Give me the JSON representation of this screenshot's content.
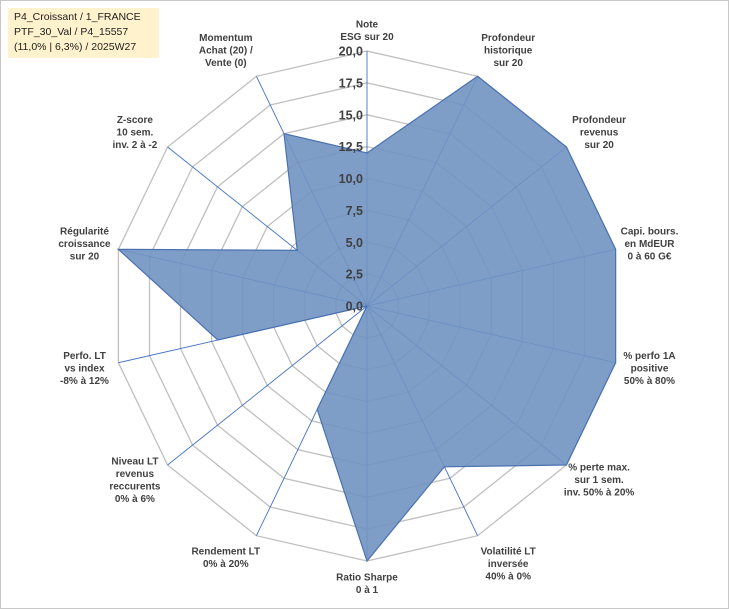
{
  "info_box": {
    "line1": "P4_Croissant / 1_FRANCE",
    "line2": "PTF_30_Val / P4_15557",
    "line3": "(11,0% | 6,3%) / 2025W27"
  },
  "colors": {
    "fill": "#7094c2",
    "stroke": "#4a72b0",
    "axis": "#4472c4",
    "grid": "#bfbfbf"
  },
  "chart_data": {
    "type": "radar",
    "rmin": 0,
    "rmax": 20,
    "step": 2.5,
    "tick_labels": [
      "0,0",
      "2,5",
      "5,0",
      "7,5",
      "10,0",
      "12,5",
      "15,0",
      "17,5",
      "20,0"
    ],
    "axes": [
      {
        "label": [
          "Note",
          "ESG sur 20"
        ],
        "value": 12
      },
      {
        "label": [
          "Profondeur",
          "historique",
          "sur 20"
        ],
        "value": 20
      },
      {
        "label": [
          "Profondeur",
          "revenus",
          "sur 20"
        ],
        "value": 20
      },
      {
        "label": [
          "Capi. bours.",
          "en MdEUR",
          "0 à 60 G€"
        ],
        "value": 20
      },
      {
        "label": [
          "% perfo 1A",
          "positive",
          "50% à 80%"
        ],
        "value": 20
      },
      {
        "label": [
          "% perte max.",
          "sur 1 sem.",
          "inv. 50% à 20%"
        ],
        "value": 20
      },
      {
        "label": [
          "Volatilité LT",
          "inversée",
          "40% à 0%"
        ],
        "value": 14
      },
      {
        "label": [
          "Ratio Sharpe",
          "0 à 1"
        ],
        "value": 20
      },
      {
        "label": [
          "Rendement LT",
          "0% à 20%"
        ],
        "value": 9
      },
      {
        "label": [
          "Niveau LT",
          "revenus",
          "reccurents",
          "0% à 6%"
        ],
        "value": 0
      },
      {
        "label": [
          "Perfo. LT",
          "vs index",
          "-8% à 12%"
        ],
        "value": 12
      },
      {
        "label": [
          "Régularité",
          "croissance",
          "sur 20"
        ],
        "value": 20
      },
      {
        "label": [
          "Z-score",
          "10 sem.",
          "inv. 2 à -2"
        ],
        "value": 7
      },
      {
        "label": [
          "Momentum",
          "Achat (20) /",
          "Vente (0)"
        ],
        "value": 15
      }
    ]
  }
}
